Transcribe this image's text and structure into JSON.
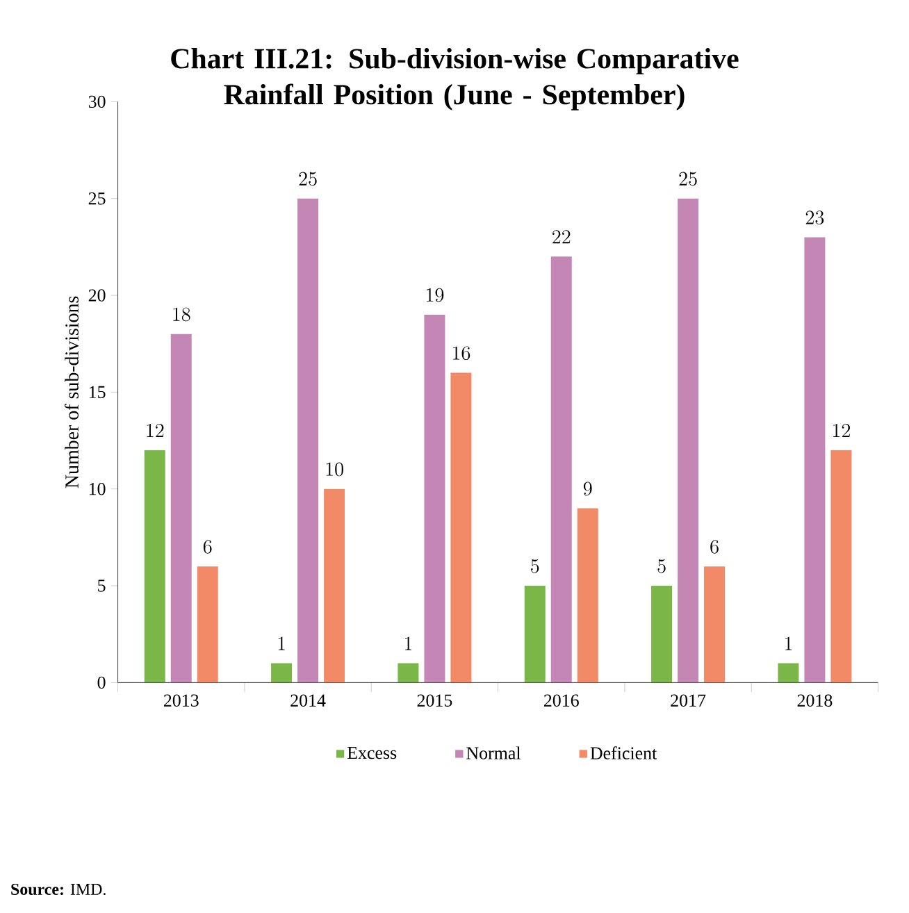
{
  "chart_data": {
    "type": "bar",
    "title": "Chart III.21: Sub-division-wise Comparative Rainfall Position (June - September)",
    "ylabel": "Number of sub-divisions",
    "categories": [
      "2013",
      "2014",
      "2015",
      "2016",
      "2017",
      "2018"
    ],
    "series": [
      {
        "name": "Excess",
        "color": "#7ab648",
        "values": [
          12,
          1,
          1,
          5,
          5,
          1
        ]
      },
      {
        "name": "Normal",
        "color": "#c486b5",
        "values": [
          18,
          25,
          19,
          22,
          25,
          23
        ]
      },
      {
        "name": "Deficient",
        "color": "#f28a68",
        "values": [
          6,
          10,
          16,
          9,
          6,
          12
        ]
      }
    ],
    "ylim": [
      0,
      30
    ],
    "yticks": [
      0,
      5,
      10,
      15,
      20,
      25,
      30
    ],
    "data_labels": true,
    "legend": "bottom",
    "grid": false,
    "annotations": [
      "**Source:** IMD."
    ]
  }
}
